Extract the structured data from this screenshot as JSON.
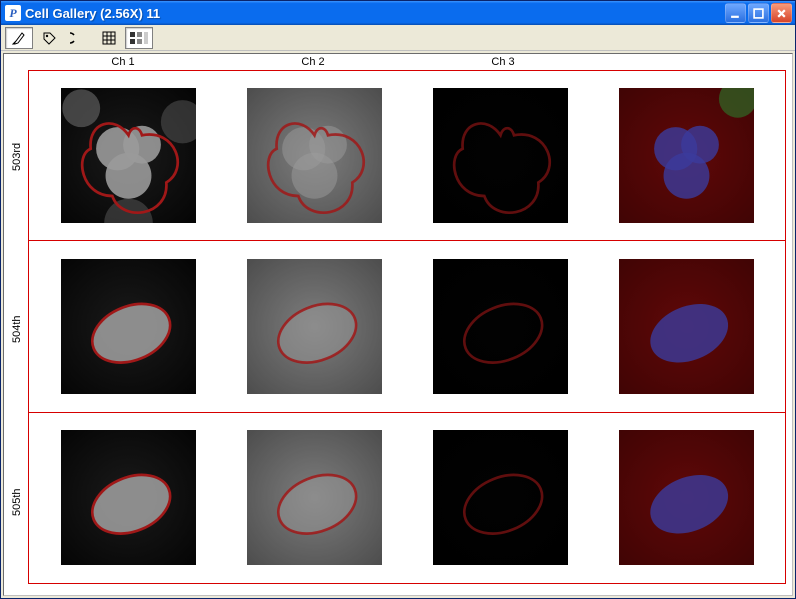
{
  "window": {
    "title": "Cell Gallery (2.56X) 11"
  },
  "toolbar": {
    "tools": [
      {
        "name": "brush-tool",
        "pressed": true
      },
      {
        "name": "tag-tool",
        "pressed": false
      },
      {
        "name": "select-tool",
        "pressed": false
      },
      {
        "name": "grid-tool",
        "pressed": false
      },
      {
        "name": "channels-tool",
        "pressed": true
      }
    ]
  },
  "columns": [
    "Ch 1",
    "Ch 2",
    "Ch 3",
    ""
  ],
  "rows": [
    {
      "label": "503rd",
      "shape": "trilobe"
    },
    {
      "label": "504th",
      "shape": "oval"
    },
    {
      "label": "505th",
      "shape": "oval"
    }
  ],
  "style": {
    "row_border_color": "#d60000",
    "outline_color": "#a01818",
    "channel_styles": [
      {
        "bg_from": "#050505",
        "bg_to": "#1a1a1a",
        "nucleus_fill": "#9a9a9a",
        "nucleus_blur": "light",
        "outline_alpha": 1.0
      },
      {
        "bg_from": "#3a3a3a",
        "bg_to": "#7a7a7a",
        "nucleus_fill": "#9c9c9c",
        "nucleus_blur": "heavy",
        "outline_alpha": 0.85
      },
      {
        "bg_from": "#000000",
        "bg_to": "#020202",
        "nucleus_fill": "none",
        "nucleus_blur": "none",
        "outline_alpha": 0.6
      },
      {
        "bg_from": "#1a0202",
        "bg_to": "#4a0606",
        "nucleus_fill": "#3b3b9c",
        "nucleus_blur": "color",
        "outline_alpha": 0.0
      }
    ]
  }
}
